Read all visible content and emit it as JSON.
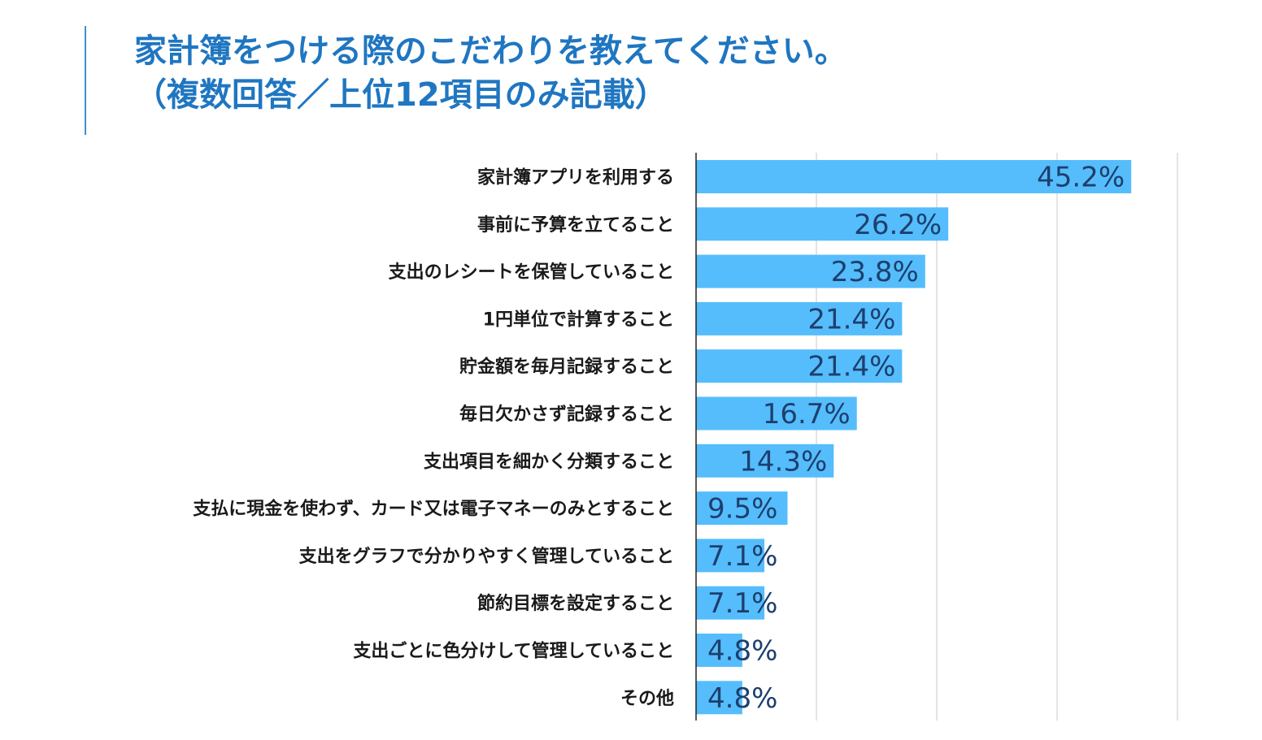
{
  "title": {
    "line1": "家計簿をつける際のこだわりを教えてください。",
    "line2": "（複数回答／上位12項目のみ記載）"
  },
  "colors": {
    "bar": "#55bdfc",
    "title": "#1f76c1",
    "value_text": "#1d3f6e",
    "grid": "#c8c8c8",
    "axis": "#222222"
  },
  "chart_data": {
    "type": "bar",
    "orientation": "horizontal",
    "title": "家計簿をつける際のこだわりを教えてください。（複数回答／上位12項目のみ記載）",
    "categories": [
      "家計簿アプリを利用する",
      "事前に予算を立てること",
      "支出のレシートを保管していること",
      "1円単位で計算すること",
      "貯金額を毎月記録すること",
      "毎日欠かさず記録すること",
      "支出項目を細かく分類すること",
      "支払に現金を使わず、カード又は電子マネーのみとすること",
      "支出をグラフで分かりやすく管理していること",
      "節約目標を設定すること",
      "支出ごとに色分けして管理していること",
      "その他"
    ],
    "values": [
      45.2,
      26.2,
      23.8,
      21.4,
      21.4,
      16.7,
      14.3,
      9.5,
      7.1,
      7.1,
      4.8,
      4.8
    ],
    "value_labels": [
      "45.2%",
      "26.2%",
      "23.8%",
      "21.4%",
      "21.4%",
      "16.7%",
      "14.3%",
      "9.5%",
      "7.1%",
      "7.1%",
      "4.8%",
      "4.8%"
    ],
    "xlim": [
      0,
      50
    ],
    "grid_step": 12.5,
    "grid": true,
    "legend": "none"
  }
}
